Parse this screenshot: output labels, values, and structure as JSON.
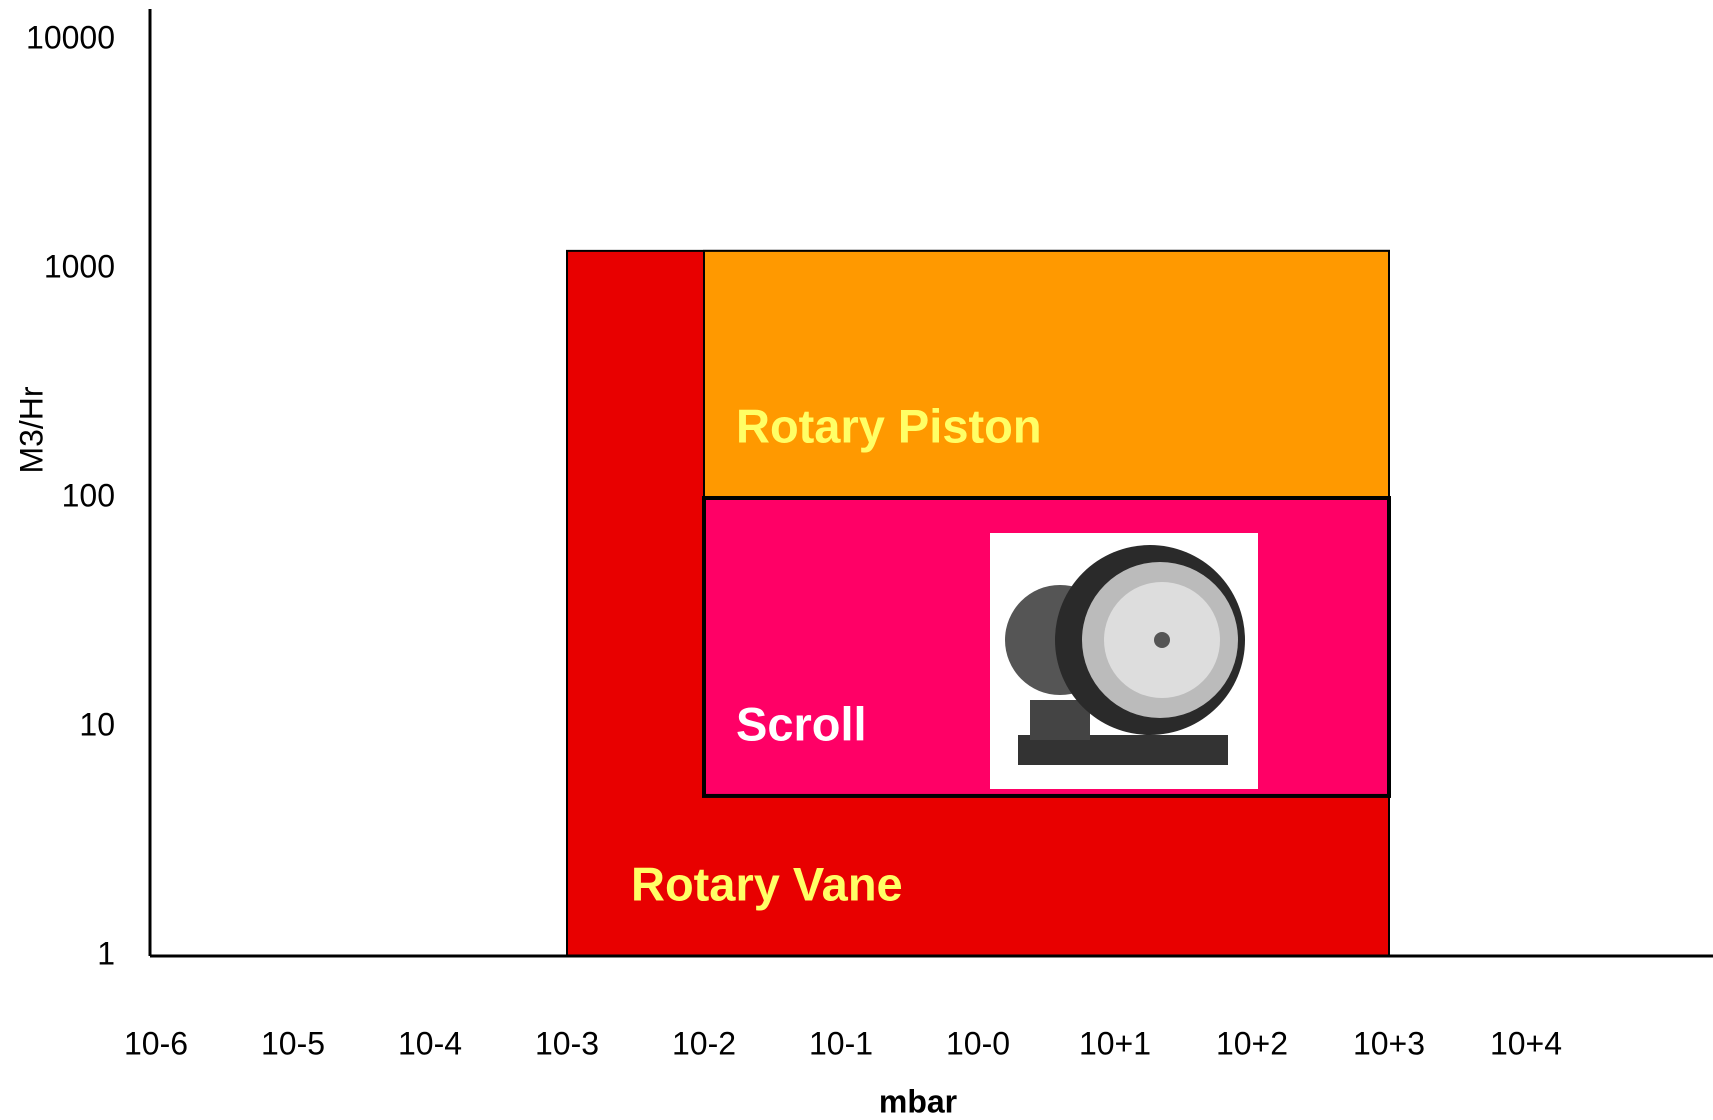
{
  "chart_data": {
    "type": "range",
    "xlabel": "mbar",
    "ylabel": "M3/Hr",
    "xscale": "log",
    "yscale": "log",
    "xlim": [
      1e-06,
      100000
    ],
    "ylim": [
      1,
      10000
    ],
    "xticks": [
      {
        "value": 1e-06,
        "label": "10-6"
      },
      {
        "value": 1e-05,
        "label": "10-5"
      },
      {
        "value": 0.0001,
        "label": "10-4"
      },
      {
        "value": 0.001,
        "label": "10-3"
      },
      {
        "value": 0.01,
        "label": "10-2"
      },
      {
        "value": 0.1,
        "label": "10-1"
      },
      {
        "value": 1,
        "label": "10-0"
      },
      {
        "value": 10,
        "label": "10+1"
      },
      {
        "value": 100,
        "label": "10+2"
      },
      {
        "value": 1000,
        "label": "10+3"
      },
      {
        "value": 10000,
        "label": "10+4"
      }
    ],
    "yticks": [
      1,
      10,
      100,
      1000,
      10000
    ],
    "series": [
      {
        "name": "Rotary Vane",
        "color": "#e80000",
        "label_color": "#ffff66",
        "x": [
          0.001,
          1000
        ],
        "values": [
          1,
          1200
        ]
      },
      {
        "name": "Rotary Piston",
        "color": "#ff9900",
        "label_color": "#ffff66",
        "x": [
          0.01,
          1000
        ],
        "values": [
          100,
          1200
        ]
      },
      {
        "name": "Scroll",
        "color": "#ff0066",
        "label_color": "#ffffff",
        "x": [
          0.01,
          1000
        ],
        "values": [
          5,
          100
        ]
      }
    ]
  }
}
